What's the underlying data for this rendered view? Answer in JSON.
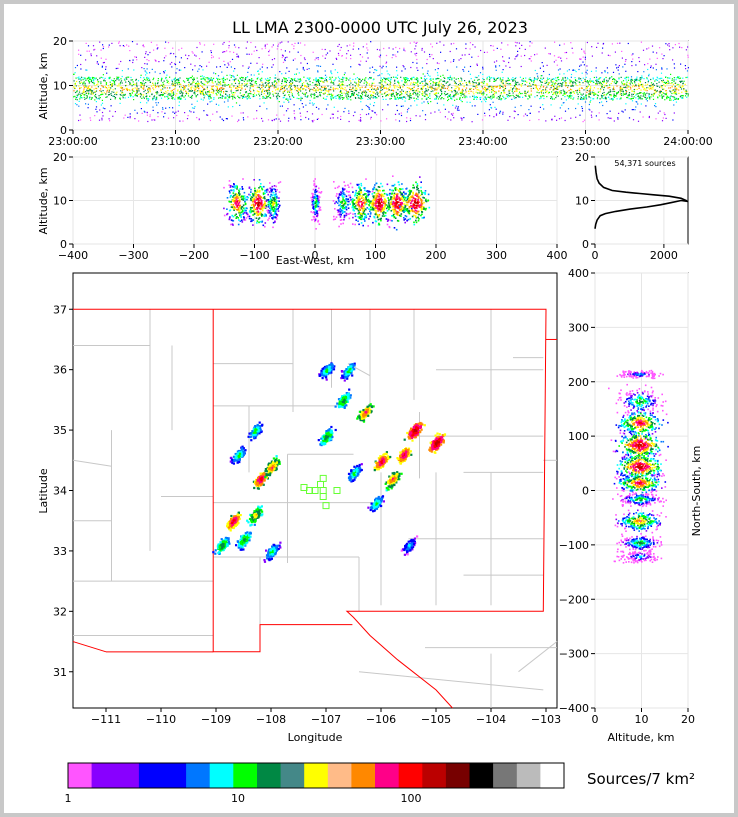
{
  "chart_data": [
    {
      "panel": "time-height",
      "type": "heatmap",
      "title": "LL LMA 2300-0000 UTC July 26, 2023",
      "ylabel": "Altitude, km",
      "ylim": [
        0,
        20
      ],
      "yticks": [
        "0",
        "10",
        "20"
      ],
      "xticks": [
        "23:00:00",
        "23:10:00",
        "23:20:00",
        "23:30:00",
        "23:40:00",
        "23:50:00",
        "24:00:00"
      ],
      "xlim_minutes": [
        0,
        60
      ],
      "grid": true,
      "core_altitude_km": [
        7,
        12
      ]
    },
    {
      "panel": "east-west-height",
      "type": "heatmap",
      "xlabel": "East-West, km",
      "ylabel": "Altitude, km",
      "xlim": [
        -400,
        400
      ],
      "ylim": [
        0,
        20
      ],
      "xticks": [
        "−400",
        "−300",
        "−200",
        "−100",
        "0",
        "100",
        "200",
        "300",
        "400"
      ],
      "yticks": [
        "0",
        "10",
        "20"
      ],
      "grid": true,
      "clusters": [
        {
          "x": -130,
          "spread": 12,
          "density": 0.9
        },
        {
          "x": -95,
          "spread": 12,
          "density": 1.0
        },
        {
          "x": -70,
          "spread": 8,
          "density": 0.7
        },
        {
          "x": 0,
          "spread": 5,
          "density": 0.6
        },
        {
          "x": 45,
          "spread": 10,
          "density": 0.6
        },
        {
          "x": 75,
          "spread": 12,
          "density": 0.9
        },
        {
          "x": 105,
          "spread": 12,
          "density": 1.0
        },
        {
          "x": 135,
          "spread": 12,
          "density": 1.0
        },
        {
          "x": 165,
          "spread": 15,
          "density": 1.0
        }
      ]
    },
    {
      "panel": "altitude-histogram",
      "type": "line",
      "annotation": "54,371 sources",
      "xlim": [
        0,
        2700
      ],
      "ylim": [
        0,
        20
      ],
      "xticks": [
        "0",
        "2000"
      ],
      "yticks": [
        "0",
        "10",
        "20"
      ],
      "x": [
        0,
        20,
        60,
        150,
        300,
        600,
        1000,
        1500,
        1900,
        2200,
        2500,
        2700,
        2500,
        2150,
        1700,
        1300,
        900,
        500,
        250,
        120,
        60,
        30,
        10
      ],
      "y": [
        3.5,
        4.5,
        5.5,
        6.5,
        7.0,
        7.5,
        8.0,
        8.5,
        9.0,
        9.5,
        10.0,
        9.8,
        10.5,
        11.0,
        11.3,
        11.6,
        11.9,
        12.3,
        13.0,
        14.0,
        15.0,
        16.5,
        18.0
      ]
    },
    {
      "panel": "plan-view",
      "type": "heatmap",
      "xlabel": "Longitude",
      "ylabel": "Latitude",
      "xlim": [
        -111.6,
        -102.8
      ],
      "ylim": [
        30.4,
        37.6
      ],
      "xticks": [
        "−111",
        "−110",
        "−109",
        "−108",
        "−107",
        "−106",
        "−105",
        "−104",
        "−103"
      ],
      "yticks": [
        "31",
        "32",
        "33",
        "34",
        "35",
        "36",
        "37"
      ],
      "cells": [
        {
          "lon": -106.3,
          "lat": 35.3,
          "intensity": 0.8
        },
        {
          "lon": -105.4,
          "lat": 35.0,
          "intensity": 1.0
        },
        {
          "lon": -105.0,
          "lat": 34.8,
          "intensity": 1.0
        },
        {
          "lon": -105.6,
          "lat": 34.6,
          "intensity": 0.9
        },
        {
          "lon": -106.0,
          "lat": 34.5,
          "intensity": 0.9
        },
        {
          "lon": -105.8,
          "lat": 34.2,
          "intensity": 0.8
        },
        {
          "lon": -106.7,
          "lat": 35.5,
          "intensity": 0.6
        },
        {
          "lon": -107.0,
          "lat": 34.9,
          "intensity": 0.6
        },
        {
          "lon": -107.0,
          "lat": 36.0,
          "intensity": 0.5
        },
        {
          "lon": -106.6,
          "lat": 36.0,
          "intensity": 0.5
        },
        {
          "lon": -108.2,
          "lat": 34.2,
          "intensity": 0.9
        },
        {
          "lon": -108.0,
          "lat": 34.4,
          "intensity": 0.8
        },
        {
          "lon": -108.7,
          "lat": 33.5,
          "intensity": 0.9
        },
        {
          "lon": -108.3,
          "lat": 33.6,
          "intensity": 0.7
        },
        {
          "lon": -108.6,
          "lat": 34.6,
          "intensity": 0.5
        },
        {
          "lon": -108.3,
          "lat": 35.0,
          "intensity": 0.5
        },
        {
          "lon": -108.5,
          "lat": 33.2,
          "intensity": 0.6
        },
        {
          "lon": -108.9,
          "lat": 33.1,
          "intensity": 0.6
        },
        {
          "lon": -108.0,
          "lat": 33.0,
          "intensity": 0.5
        },
        {
          "lon": -106.1,
          "lat": 33.8,
          "intensity": 0.5
        },
        {
          "lon": -105.5,
          "lat": 33.1,
          "intensity": 0.4
        },
        {
          "lon": -106.5,
          "lat": 34.3,
          "intensity": 0.5
        }
      ],
      "stations": [
        {
          "lon": -107.05,
          "lat": 34.2
        },
        {
          "lon": -107.1,
          "lat": 34.1
        },
        {
          "lon": -107.3,
          "lat": 34.0
        },
        {
          "lon": -107.2,
          "lat": 34.0
        },
        {
          "lon": -107.05,
          "lat": 34.0
        },
        {
          "lon": -106.8,
          "lat": 34.0
        },
        {
          "lon": -107.05,
          "lat": 33.9
        },
        {
          "lon": -107.4,
          "lat": 34.05
        },
        {
          "lon": -107.0,
          "lat": 33.75
        }
      ]
    },
    {
      "panel": "north-south-height",
      "type": "heatmap",
      "xlabel": "Altitude, km",
      "ylabel": "North-South, km",
      "xlim": [
        0,
        20
      ],
      "ylim": [
        -400,
        400
      ],
      "xticks": [
        "0",
        "10",
        "20"
      ],
      "yticks": [
        "−400",
        "−300",
        "−200",
        "−100",
        "0",
        "100",
        "200",
        "300",
        "400"
      ],
      "clusters": [
        {
          "y": 215,
          "spread": 5,
          "density": 0.4
        },
        {
          "y": 165,
          "spread": 15,
          "density": 0.6
        },
        {
          "y": 125,
          "spread": 15,
          "density": 0.9
        },
        {
          "y": 85,
          "spread": 15,
          "density": 1.0
        },
        {
          "y": 45,
          "spread": 15,
          "density": 1.0
        },
        {
          "y": 15,
          "spread": 12,
          "density": 0.9
        },
        {
          "y": -15,
          "spread": 8,
          "density": 0.6
        },
        {
          "y": -55,
          "spread": 12,
          "density": 0.8
        },
        {
          "y": -95,
          "spread": 10,
          "density": 0.6
        },
        {
          "y": -120,
          "spread": 8,
          "density": 0.4
        }
      ]
    }
  ],
  "colorbar": {
    "label": "Sources/7 km²",
    "tick_labels": [
      "1",
      "10",
      "100"
    ],
    "colors": [
      "#ff55ff",
      "#8800ff",
      "#8800ff",
      "#0000ff",
      "#0000ff",
      "#0077ff",
      "#00ffff",
      "#00ff00",
      "#008844",
      "#448888",
      "#ffff00",
      "#ffbb88",
      "#ff8800",
      "#ff0088",
      "#ff0000",
      "#bb0000",
      "#770000",
      "#000000",
      "#777777",
      "#bbbbbb",
      "#ffffff"
    ],
    "widths": [
      1,
      1,
      1,
      1,
      1,
      1,
      1,
      1,
      1,
      1,
      1,
      1,
      1,
      1,
      1,
      1,
      1,
      1,
      1,
      1,
      1
    ]
  },
  "heat_colors": [
    "#ff55ff",
    "#8800ff",
    "#0000ff",
    "#0077ff",
    "#00ffff",
    "#00ff00",
    "#008844",
    "#ffff00",
    "#ff8800",
    "#ff0088",
    "#ff0000",
    "#bb0000"
  ],
  "map": {
    "border_color": "#ff0000",
    "county_color": "#c8c8c8",
    "station_color": "#66ff33"
  }
}
